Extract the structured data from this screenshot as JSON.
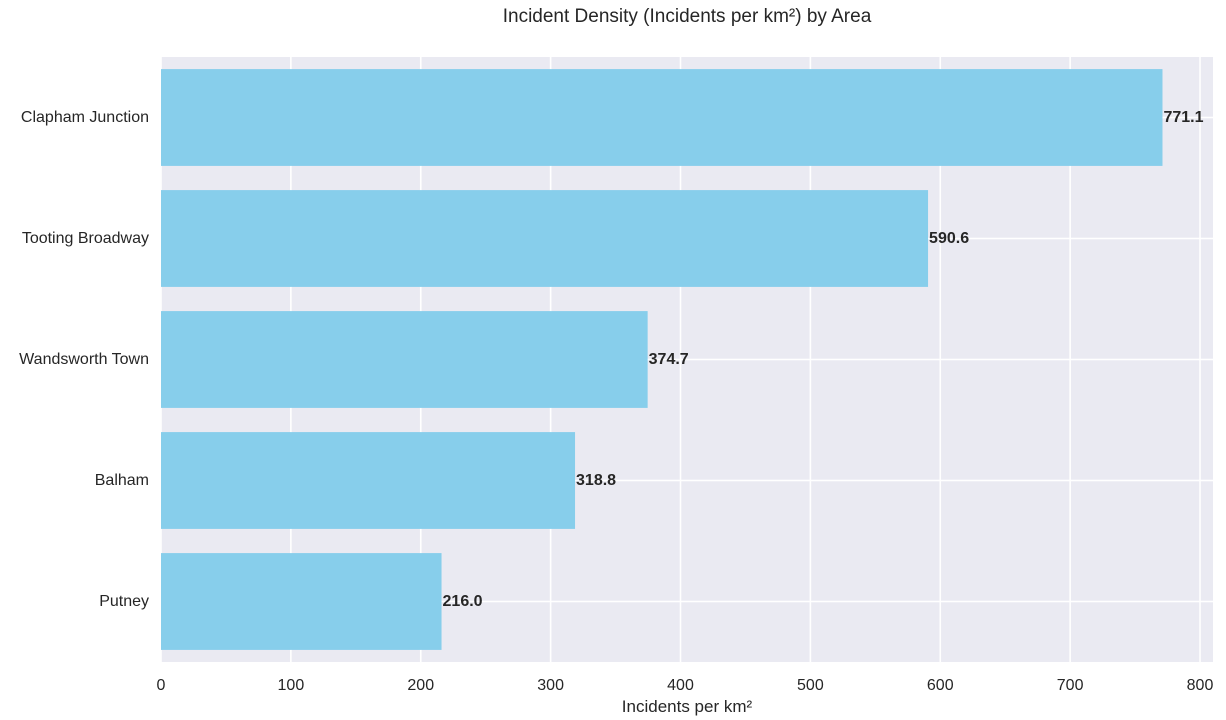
{
  "chart_data": {
    "type": "bar",
    "orientation": "horizontal",
    "title": "Incident Density (Incidents per km²) by Area",
    "xlabel": "Incidents per km²",
    "ylabel": "",
    "categories": [
      "Clapham Junction",
      "Tooting Broadway",
      "Wandsworth Town",
      "Balham",
      "Putney"
    ],
    "values": [
      771.1,
      590.6,
      374.7,
      318.8,
      216.0
    ],
    "value_labels": [
      "771.1",
      "590.6",
      "374.7",
      "318.8",
      "216.0"
    ],
    "xlim": [
      0,
      810
    ],
    "xticks": [
      0,
      100,
      200,
      300,
      400,
      500,
      600,
      700,
      800
    ],
    "xtick_labels": [
      "0",
      "100",
      "200",
      "300",
      "400",
      "500",
      "600",
      "700",
      "800"
    ],
    "grid": true,
    "legend": "none",
    "colors": {
      "bar": "#87ceeb",
      "plot_background": "#eaeaf2",
      "grid": "#ffffff",
      "text": "#262626"
    }
  }
}
